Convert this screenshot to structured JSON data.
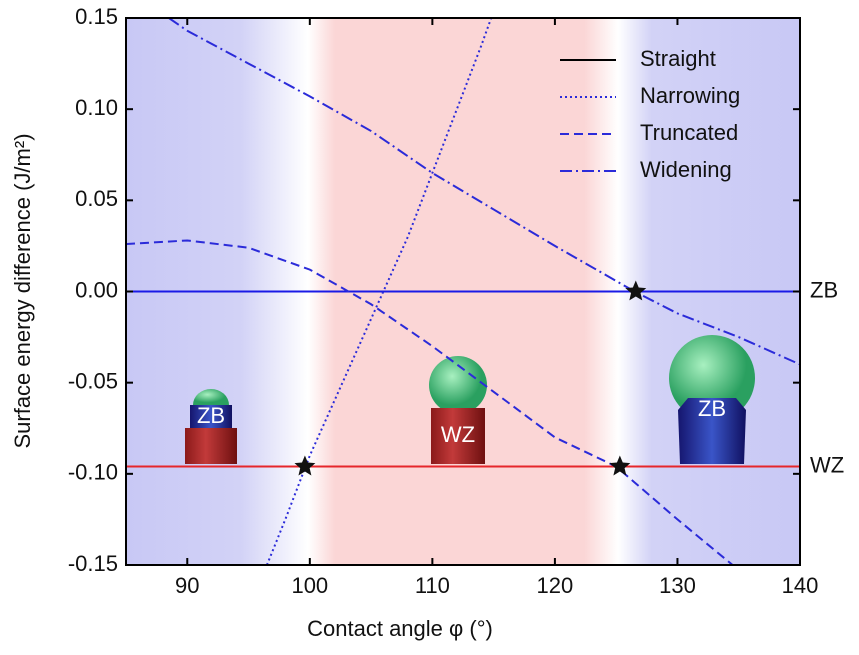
{
  "chart_data": {
    "type": "line",
    "xlabel": "Contact angle φ (°)",
    "ylabel": "Surface energy difference (J/m²)",
    "xlim": [
      85,
      140
    ],
    "xticks": [
      90,
      100,
      110,
      120,
      130,
      140
    ],
    "ylim": [
      -0.15,
      0.15
    ],
    "yticks": [
      -0.15,
      {
        "value": -0.1,
        "label": "-0.10"
      },
      -0.05,
      {
        "value": 0,
        "label": "0.00"
      },
      0.05,
      {
        "value": 0.1,
        "label": "0.10"
      },
      0.15
    ],
    "legend": "upper right",
    "series": [
      {
        "name": "Straight",
        "color": "#000000",
        "style": "solid",
        "x": [],
        "values": []
      },
      {
        "name": "Narrowing",
        "color": "#2b2bd9",
        "style": "dotted",
        "x": [
          96.5,
          98,
          100,
          102,
          104,
          106,
          108,
          110,
          112,
          114,
          114.8
        ],
        "values": [
          -0.15,
          -0.125,
          -0.09,
          -0.06,
          -0.03,
          0.0,
          0.03,
          0.065,
          0.1,
          0.135,
          0.15
        ]
      },
      {
        "name": "Truncated",
        "color": "#2b2bd9",
        "style": "dashed",
        "x": [
          85,
          90,
          95,
          100,
          105,
          110,
          115,
          120,
          125,
          130,
          134.5
        ],
        "values": [
          0.026,
          0.028,
          0.024,
          0.012,
          -0.007,
          -0.03,
          -0.055,
          -0.08,
          -0.096,
          -0.125,
          -0.15
        ]
      },
      {
        "name": "Widening",
        "color": "#2b2bd9",
        "style": "dashdot",
        "x": [
          88.5,
          90,
          95,
          100,
          105,
          110,
          115,
          120,
          126.5,
          130,
          135,
          140
        ],
        "values": [
          0.15,
          0.143,
          0.125,
          0.107,
          0.088,
          0.065,
          0.045,
          0.025,
          0.0,
          -0.012,
          -0.025,
          -0.04
        ]
      }
    ],
    "reference_lines": [
      {
        "name": "ZB",
        "color": "#1a1ae6",
        "value": 0
      },
      {
        "name": "WZ",
        "color": "#e6262b",
        "value": -0.096
      }
    ],
    "stars": {
      "x": [
        99.6,
        125.3,
        126.6
      ],
      "values": [
        -0.096,
        -0.096,
        0
      ]
    },
    "inset_labels": [
      "ZB",
      "WZ",
      "ZB"
    ]
  }
}
